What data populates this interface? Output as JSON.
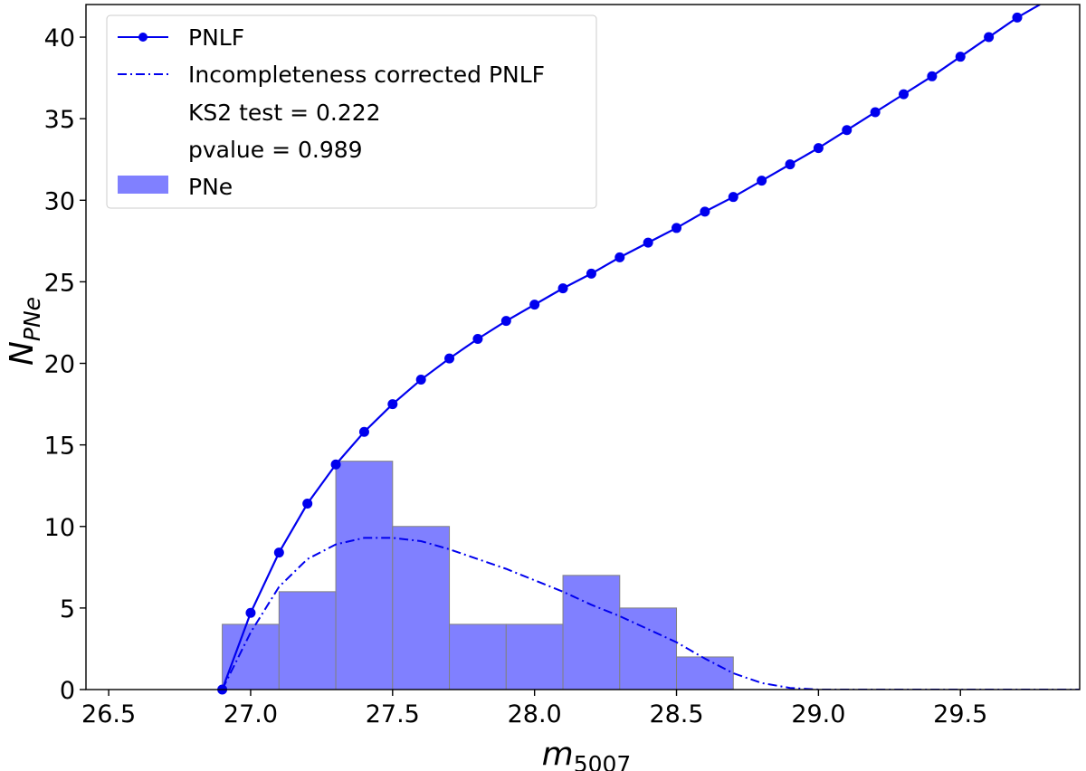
{
  "chart_data": {
    "type": "line",
    "xlabel": "m",
    "xlabel_sub": "5007",
    "ylabel": "N",
    "ylabel_sub": "PNe",
    "xlim": [
      26.42,
      29.92
    ],
    "ylim": [
      0,
      42
    ],
    "xticks": [
      26.5,
      27.0,
      27.5,
      28.0,
      28.5,
      29.0,
      29.5
    ],
    "xtick_labels": [
      "26.5",
      "27.0",
      "27.5",
      "28.0",
      "28.5",
      "29.0",
      "29.5"
    ],
    "yticks": [
      0,
      5,
      10,
      15,
      20,
      25,
      30,
      35,
      40
    ],
    "ytick_labels": [
      "0",
      "5",
      "10",
      "15",
      "20",
      "25",
      "30",
      "35",
      "40"
    ],
    "grid": false,
    "legend_position": "top-left",
    "legend": {
      "pnlf": "PNLF",
      "corrected": "Incompleteness corrected PNLF",
      "ks2": "KS2 test = 0.222",
      "pvalue": "pvalue   = 0.989",
      "pne": "PNe"
    },
    "colors": {
      "pnlf": "#0000ee",
      "corrected": "#0000ee",
      "histogram_fill": "#8080ff",
      "histogram_edge": "#808080"
    },
    "histogram": {
      "name": "PNe",
      "bin_edges": [
        26.9,
        27.1,
        27.3,
        27.5,
        27.7,
        27.9,
        28.1,
        28.3,
        28.5,
        28.7
      ],
      "counts": [
        4,
        6,
        14,
        10,
        4,
        4,
        7,
        5,
        2
      ]
    },
    "series": [
      {
        "name": "PNLF",
        "style": "solid-markers",
        "x": [
          26.9,
          27.0,
          27.1,
          27.2,
          27.3,
          27.4,
          27.5,
          27.6,
          27.7,
          27.8,
          27.9,
          28.0,
          28.1,
          28.2,
          28.3,
          28.4,
          28.5,
          28.6,
          28.7,
          28.8,
          28.9,
          29.0,
          29.1,
          29.2,
          29.3,
          29.4,
          29.5,
          29.6,
          29.7
        ],
        "y": [
          0.0,
          4.7,
          8.4,
          11.4,
          13.8,
          15.8,
          17.5,
          19.0,
          20.3,
          21.5,
          22.6,
          23.6,
          24.6,
          25.5,
          26.5,
          27.4,
          28.3,
          29.3,
          30.2,
          31.2,
          32.2,
          33.2,
          34.3,
          35.4,
          36.5,
          37.6,
          38.8,
          40.0,
          41.2
        ],
        "continues_to": [
          29.78,
          42.0
        ]
      },
      {
        "name": "Incompleteness corrected PNLF",
        "style": "dash-dot",
        "x": [
          26.9,
          27.0,
          27.1,
          27.2,
          27.3,
          27.4,
          27.5,
          27.6,
          27.7,
          27.8,
          27.9,
          28.0,
          28.1,
          28.2,
          28.3,
          28.4,
          28.5,
          28.6,
          28.7,
          28.8,
          28.9,
          29.0,
          29.1,
          29.3,
          29.5,
          29.7,
          29.92
        ],
        "y": [
          0.0,
          3.5,
          6.3,
          8.0,
          8.9,
          9.3,
          9.3,
          9.1,
          8.6,
          8.0,
          7.4,
          6.7,
          6.0,
          5.2,
          4.5,
          3.7,
          2.9,
          1.9,
          1.0,
          0.4,
          0.1,
          0.0,
          0.0,
          0.0,
          0.0,
          0.0,
          0.0
        ]
      }
    ]
  }
}
